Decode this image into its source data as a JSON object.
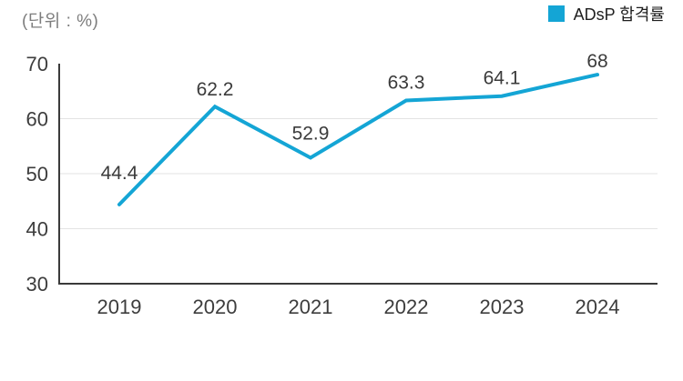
{
  "unit_label": "(단위 : %)",
  "legend": {
    "label": "ADsP 합격률",
    "color": "#14A5D5"
  },
  "chart_data": {
    "type": "line",
    "title": "",
    "xlabel": "",
    "ylabel": "(단위 : %)",
    "categories": [
      "2019",
      "2020",
      "2021",
      "2022",
      "2023",
      "2024"
    ],
    "series": [
      {
        "name": "ADsP 합격률",
        "values": [
          44.4,
          62.2,
          52.9,
          63.3,
          64.1,
          68
        ]
      }
    ],
    "data_labels": [
      "44.4",
      "62.2",
      "52.9",
      "63.3",
      "64.1",
      "68"
    ],
    "ylim": [
      30,
      70
    ],
    "yticks": [
      30,
      40,
      50,
      60,
      70
    ],
    "grid": true,
    "gridline_values": [
      40,
      50,
      60
    ],
    "legend_position": "top-right",
    "line_color": "#14A5D5",
    "axis_color": "#3a3a3a",
    "gridline_color": "#e3e3e3"
  }
}
